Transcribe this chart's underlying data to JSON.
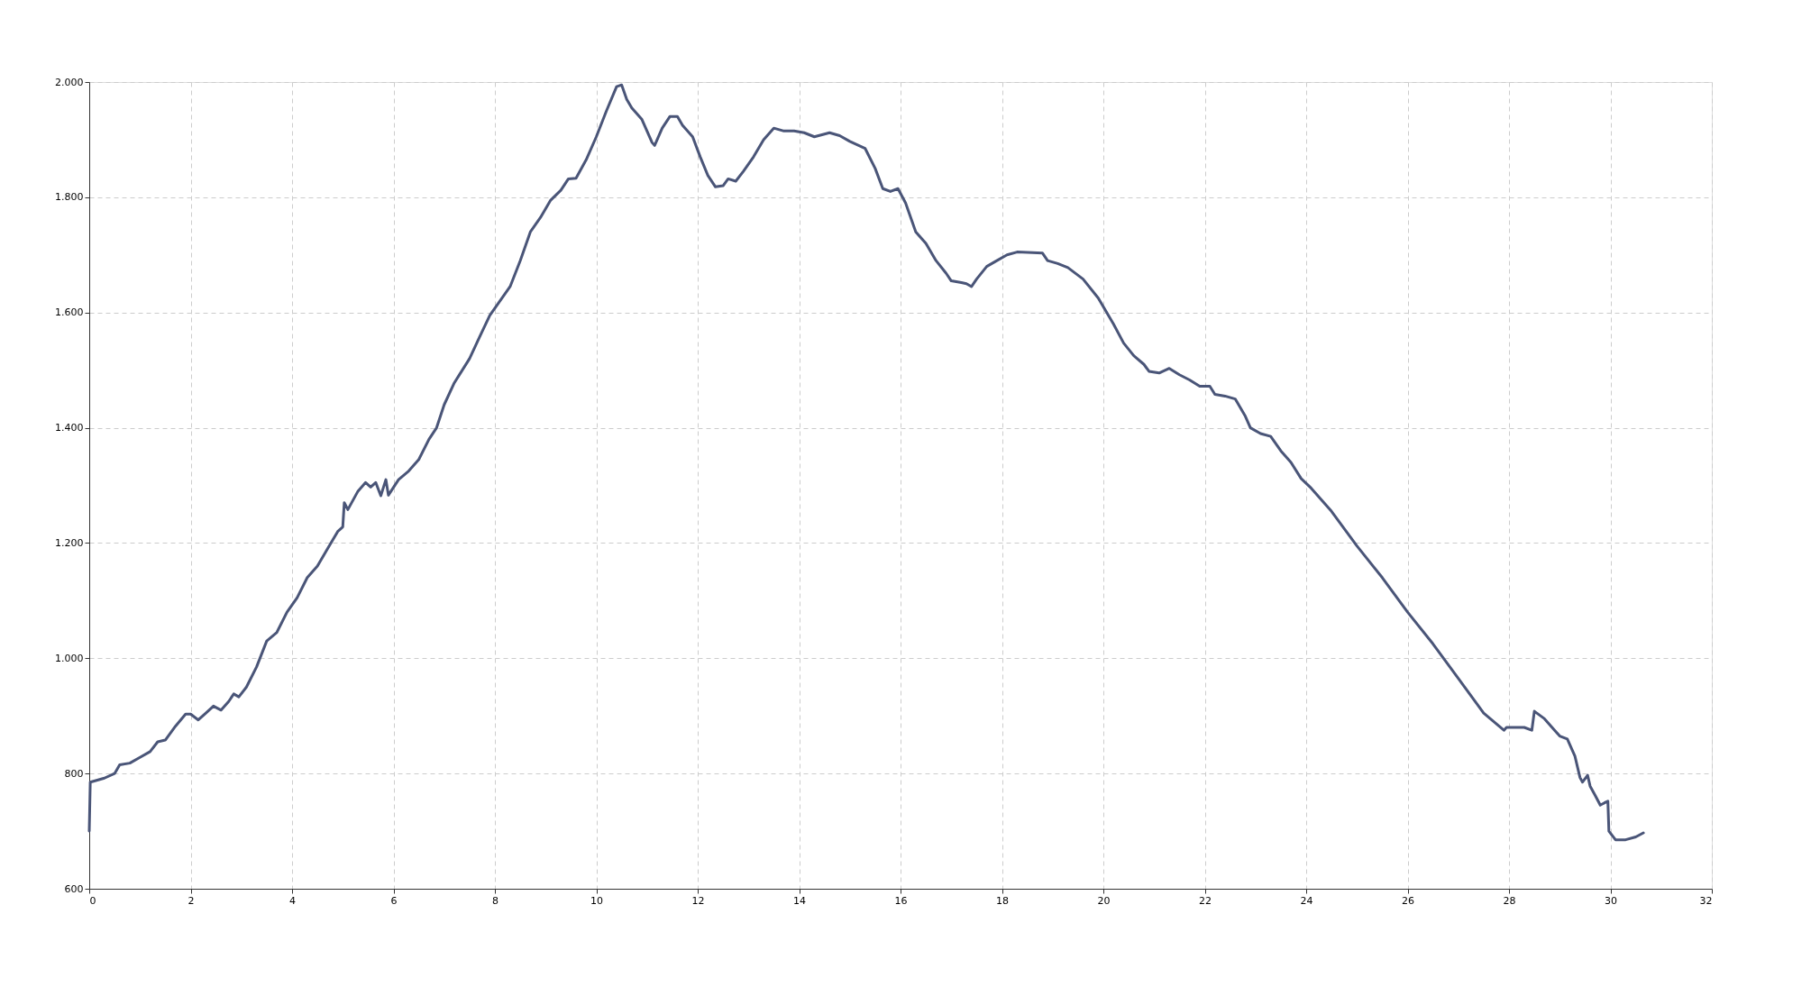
{
  "chart_data": {
    "type": "line",
    "x": [
      0,
      0.02,
      0.3,
      0.5,
      0.6,
      0.8,
      1.0,
      1.2,
      1.35,
      1.5,
      1.7,
      1.9,
      2.0,
      2.15,
      2.3,
      2.45,
      2.6,
      2.75,
      2.85,
      2.95,
      3.1,
      3.3,
      3.5,
      3.7,
      3.9,
      4.1,
      4.3,
      4.5,
      4.7,
      4.9,
      5.0,
      5.03,
      5.1,
      5.3,
      5.45,
      5.55,
      5.65,
      5.75,
      5.85,
      5.9,
      6.1,
      6.3,
      6.5,
      6.7,
      6.85,
      7.0,
      7.2,
      7.5,
      7.7,
      7.9,
      8.1,
      8.3,
      8.5,
      8.7,
      8.9,
      9.1,
      9.3,
      9.45,
      9.6,
      9.8,
      10.0,
      10.2,
      10.4,
      10.5,
      10.6,
      10.7,
      10.9,
      11.1,
      11.15,
      11.3,
      11.45,
      11.6,
      11.7,
      11.9,
      12.05,
      12.2,
      12.35,
      12.5,
      12.6,
      12.75,
      12.9,
      13.1,
      13.3,
      13.5,
      13.7,
      13.9,
      14.1,
      14.3,
      14.6,
      14.8,
      15.0,
      15.3,
      15.5,
      15.65,
      15.8,
      15.95,
      16.1,
      16.3,
      16.5,
      16.7,
      16.9,
      17.0,
      17.2,
      17.3,
      17.4,
      17.5,
      17.7,
      17.9,
      18.1,
      18.3,
      18.8,
      18.9,
      19.1,
      19.3,
      19.6,
      19.9,
      20.2,
      20.4,
      20.6,
      20.8,
      20.9,
      21.1,
      21.3,
      21.5,
      21.7,
      21.9,
      22.1,
      22.2,
      22.4,
      22.6,
      22.8,
      22.9,
      23.1,
      23.3,
      23.5,
      23.7,
      23.9,
      24.1,
      24.5,
      25.0,
      25.5,
      26.0,
      26.5,
      27.0,
      27.5,
      27.9,
      27.95,
      28.3,
      28.45,
      28.5,
      28.7,
      28.9,
      29.0,
      29.15,
      29.3,
      29.4,
      29.45,
      29.55,
      29.6,
      29.7,
      29.8,
      29.9,
      29.95,
      29.97,
      30.1,
      30.3,
      30.5,
      30.65
    ],
    "series": [
      {
        "color": "#4a5578",
        "values": [
          700,
          785,
          792,
          800,
          815,
          818,
          828,
          838,
          855,
          858,
          882,
          903,
          903,
          893,
          905,
          917,
          910,
          925,
          938,
          933,
          950,
          985,
          1030,
          1045,
          1080,
          1105,
          1140,
          1160,
          1190,
          1220,
          1228,
          1270,
          1258,
          1290,
          1305,
          1297,
          1305,
          1282,
          1310,
          1283,
          1310,
          1325,
          1345,
          1380,
          1400,
          1440,
          1478,
          1520,
          1558,
          1595,
          1620,
          1645,
          1690,
          1740,
          1765,
          1795,
          1812,
          1832,
          1833,
          1865,
          1905,
          1950,
          1992,
          1995,
          1970,
          1955,
          1935,
          1895,
          1890,
          1920,
          1940,
          1940,
          1925,
          1905,
          1870,
          1838,
          1818,
          1820,
          1832,
          1828,
          1845,
          1870,
          1900,
          1920,
          1915,
          1915,
          1912,
          1905,
          1912,
          1907,
          1897,
          1885,
          1850,
          1815,
          1810,
          1815,
          1790,
          1740,
          1720,
          1690,
          1668,
          1655,
          1652,
          1650,
          1645,
          1658,
          1680,
          1690,
          1700,
          1705,
          1703,
          1690,
          1685,
          1678,
          1658,
          1625,
          1580,
          1547,
          1525,
          1510,
          1498,
          1495,
          1503,
          1492,
          1483,
          1472,
          1472,
          1458,
          1455,
          1450,
          1420,
          1400,
          1390,
          1385,
          1360,
          1340,
          1312,
          1295,
          1255,
          1195,
          1140,
          1080,
          1025,
          965,
          905,
          875,
          880,
          880,
          875,
          908,
          895,
          875,
          865,
          860,
          830,
          793,
          785,
          797,
          778,
          762,
          745,
          750,
          752,
          700,
          685,
          685,
          690,
          697
        ]
      }
    ],
    "xlim": [
      0,
      32
    ],
    "xticks": [
      0,
      2,
      4,
      6,
      8,
      10,
      12,
      14,
      16,
      18,
      20,
      22,
      24,
      26,
      28,
      30,
      32
    ],
    "ylim": [
      600,
      2000
    ],
    "yticks": [
      {
        "value": 600,
        "label": "600"
      },
      {
        "value": 800,
        "label": "800"
      },
      {
        "value": 1000,
        "label": "1.000"
      },
      {
        "value": 1200,
        "label": "1.200"
      },
      {
        "value": 1400,
        "label": "1.400"
      },
      {
        "value": 1600,
        "label": "1.600"
      },
      {
        "value": 1800,
        "label": "1.800"
      },
      {
        "value": 2000,
        "label": "2.000"
      }
    ],
    "grid": true,
    "line_style": "solid",
    "marker": "none"
  }
}
